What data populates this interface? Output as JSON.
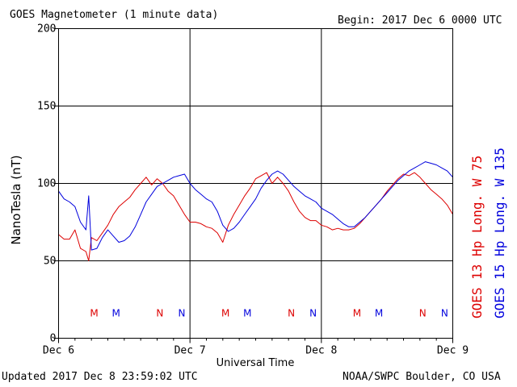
{
  "header": {
    "title": "GOES Magnetometer (1 minute data)",
    "begin": "Begin:  2017 Dec 6 0000 UTC"
  },
  "footer": {
    "updated": "Updated 2017 Dec  8 23:59:02 UTC",
    "credit": "NOAA/SWPC Boulder, CO USA"
  },
  "colors": {
    "goes13": "#dd0000",
    "goes15": "#0000dd",
    "grid": "#000000"
  },
  "chart_data": {
    "type": "line",
    "title": "GOES Magnetometer (1 minute data)",
    "xlabel": "Universal Time",
    "ylabel": "NanoTesla (nT)",
    "ylim": [
      0,
      200
    ],
    "yticks": [
      0,
      50,
      100,
      150,
      200
    ],
    "xlim": [
      0,
      72
    ],
    "x_unit": "hours since 2017 Dec 6 0000 UTC",
    "xticks": [
      {
        "x": 0,
        "label": "Dec 6"
      },
      {
        "x": 24,
        "label": "Dec 7"
      },
      {
        "x": 48,
        "label": "Dec 8"
      },
      {
        "x": 72,
        "label": "Dec 9"
      }
    ],
    "grid": true,
    "series": [
      {
        "name": "GOES 13 Hp  Long. W 75",
        "color": "#dd0000",
        "x": [
          0,
          1,
          2,
          3,
          4,
          5,
          5.5,
          6,
          7,
          8,
          9,
          10,
          11,
          12,
          13,
          14,
          15,
          16,
          17,
          18,
          19,
          20,
          21,
          22,
          23,
          24,
          25,
          26,
          27,
          28,
          29,
          30,
          31,
          32,
          33,
          34,
          35,
          36,
          37,
          38,
          39,
          40,
          41,
          42,
          43,
          44,
          45,
          46,
          47,
          48,
          49,
          50,
          51,
          52,
          53,
          54,
          55,
          56,
          57,
          58,
          59,
          60,
          61,
          62,
          63,
          64,
          65,
          66,
          67,
          68,
          69,
          70,
          71,
          72
        ],
        "y": [
          67,
          64,
          64,
          70,
          58,
          56,
          50,
          65,
          63,
          68,
          73,
          80,
          85,
          88,
          91,
          96,
          100,
          104,
          99,
          103,
          100,
          95,
          92,
          86,
          80,
          75,
          75,
          74,
          72,
          71,
          68,
          62,
          73,
          80,
          86,
          92,
          97,
          103,
          105,
          107,
          100,
          104,
          100,
          95,
          88,
          82,
          78,
          76,
          76,
          73,
          72,
          70,
          71,
          70,
          70,
          71,
          74,
          78,
          82,
          86,
          90,
          95,
          99,
          103,
          106,
          105,
          107,
          104,
          100,
          96,
          93,
          90,
          86,
          80
        ]
      },
      {
        "name": "GOES 15 Hp  Long. W 135",
        "color": "#0000dd",
        "x": [
          0,
          1,
          2,
          3,
          4,
          5,
          5.5,
          6,
          7,
          8,
          9,
          10,
          11,
          12,
          13,
          14,
          15,
          16,
          17,
          18,
          19,
          20,
          21,
          22,
          23,
          24,
          25,
          26,
          27,
          28,
          29,
          30,
          31,
          32,
          33,
          34,
          35,
          36,
          37,
          38,
          39,
          40,
          41,
          42,
          43,
          44,
          45,
          46,
          47,
          48,
          49,
          50,
          51,
          52,
          53,
          54,
          55,
          56,
          57,
          58,
          59,
          60,
          61,
          62,
          63,
          64,
          65,
          66,
          67,
          68,
          69,
          70,
          71,
          72
        ],
        "y": [
          95,
          90,
          88,
          85,
          75,
          70,
          92,
          57,
          58,
          65,
          70,
          66,
          62,
          63,
          66,
          72,
          80,
          88,
          93,
          98,
          100,
          102,
          104,
          105,
          106,
          100,
          96,
          93,
          90,
          88,
          82,
          73,
          69,
          71,
          75,
          80,
          85,
          90,
          97,
          102,
          106,
          108,
          106,
          102,
          98,
          95,
          92,
          90,
          88,
          84,
          82,
          80,
          77,
          74,
          72,
          72,
          75,
          78,
          82,
          86,
          90,
          94,
          98,
          102,
          105,
          108,
          110,
          112,
          114,
          113,
          112,
          110,
          108,
          104
        ]
      }
    ],
    "markers": [
      {
        "label": "M",
        "x": 6.5,
        "series": 0
      },
      {
        "label": "M",
        "x": 10.5,
        "series": 1
      },
      {
        "label": "N",
        "x": 18.5,
        "series": 0
      },
      {
        "label": "N",
        "x": 22.5,
        "series": 1
      },
      {
        "label": "M",
        "x": 30.5,
        "series": 0
      },
      {
        "label": "M",
        "x": 34.5,
        "series": 1
      },
      {
        "label": "N",
        "x": 42.5,
        "series": 0
      },
      {
        "label": "N",
        "x": 46.5,
        "series": 1
      },
      {
        "label": "M",
        "x": 54.5,
        "series": 0
      },
      {
        "label": "M",
        "x": 58.5,
        "series": 1
      },
      {
        "label": "N",
        "x": 66.5,
        "series": 0
      },
      {
        "label": "N",
        "x": 70.5,
        "series": 1
      }
    ]
  }
}
